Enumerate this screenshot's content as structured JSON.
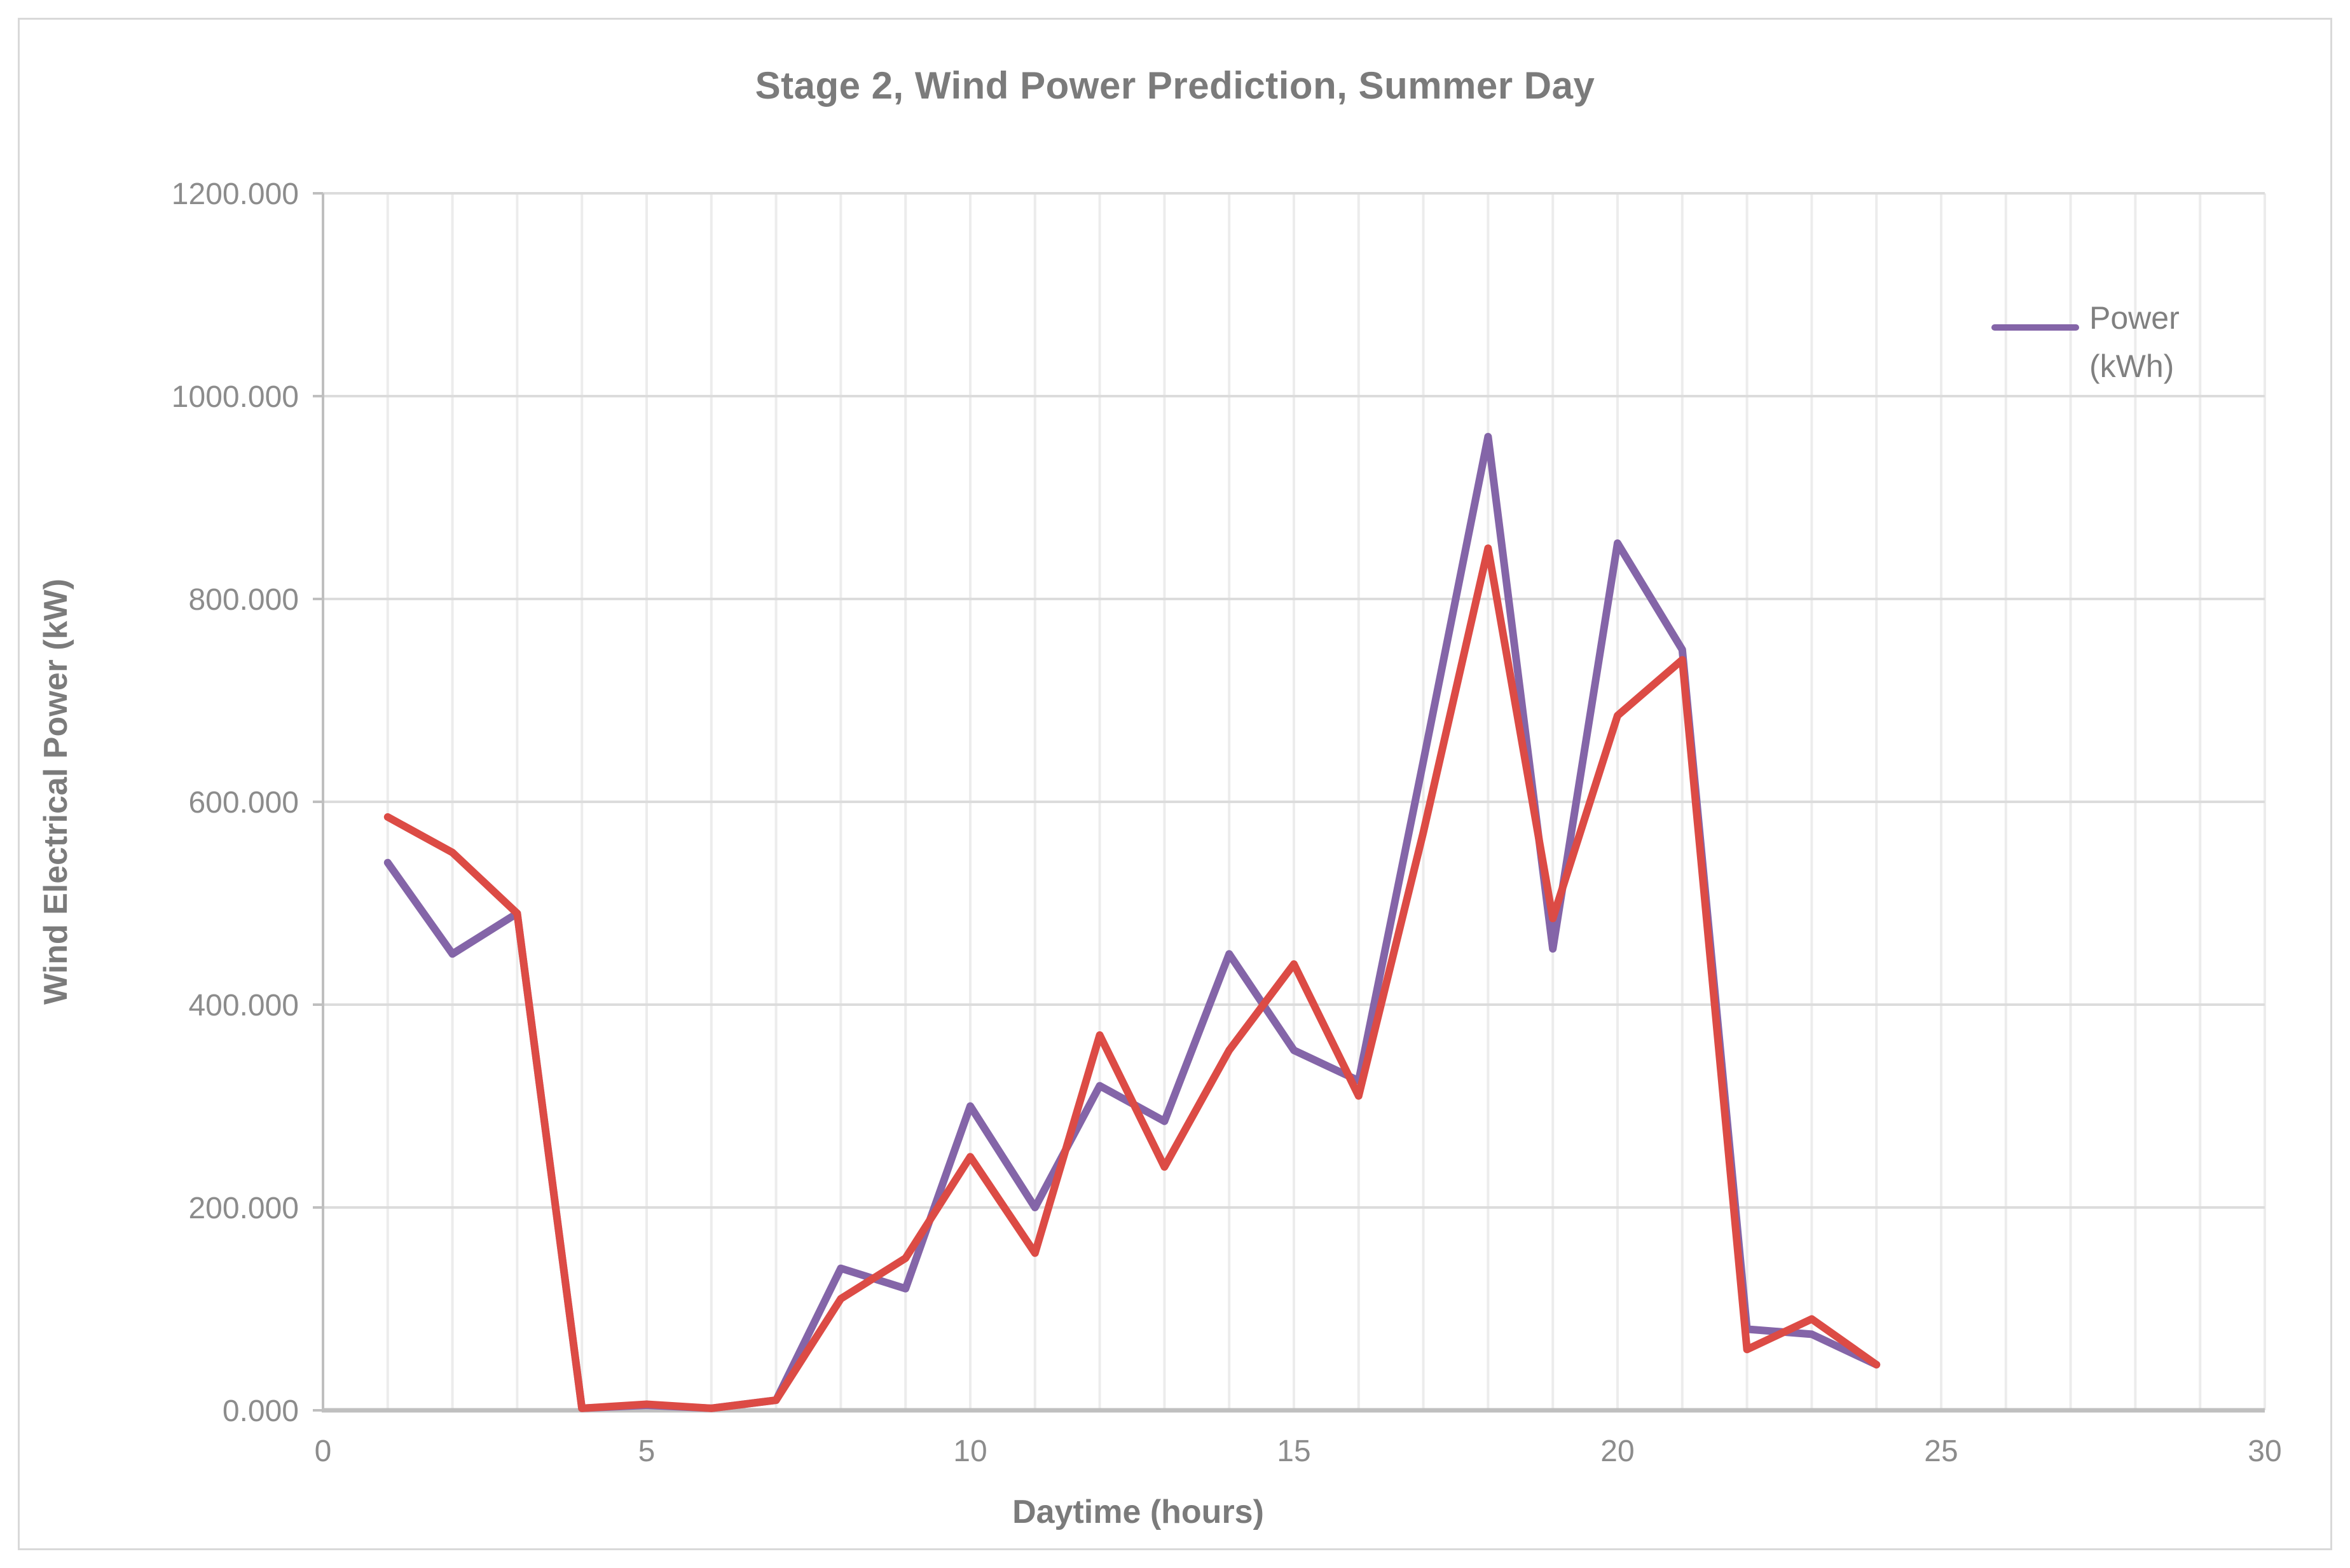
{
  "chart": {
    "title": "Stage 2, Wind Power Prediction, Summer Day",
    "y_axis_title": "Wind Electrical Power (kW)",
    "x_axis_title": "Daytime (hours)",
    "legend": {
      "label_line1": "Power",
      "label_line2": "(kWh)"
    },
    "colors": {
      "purple_series": "#8465a8",
      "red_series": "#dc4b45",
      "axis_line": "#bfbfbf",
      "gridline_horizontal": "#dcdcdc",
      "gridline_vertical": "#ececec",
      "tick_text": "#8c8c8c",
      "title_text": "#7b7b7b",
      "outer_border": "#d9d9d9"
    }
  },
  "chart_data": {
    "type": "line",
    "title": "Stage 2, Wind Power Prediction, Summer Day",
    "xlabel": "Daytime (hours)",
    "ylabel": "Wind Electrical Power (kW)",
    "xlim": [
      0,
      30
    ],
    "ylim": [
      0,
      1200
    ],
    "x_ticks": [
      0,
      5,
      10,
      15,
      20,
      25,
      30
    ],
    "y_tick_labels": [
      "0.000",
      "200.000",
      "400.000",
      "600.000",
      "800.000",
      "1000.000",
      "1200.000"
    ],
    "y_tick_values": [
      0,
      200,
      400,
      600,
      800,
      1000,
      1200
    ],
    "grid": true,
    "legend_position": "right-inside",
    "x": [
      1,
      2,
      3,
      4,
      5,
      6,
      7,
      8,
      9,
      10,
      11,
      12,
      13,
      14,
      15,
      16,
      17,
      18,
      19,
      20,
      21,
      22,
      23,
      24
    ],
    "series": [
      {
        "name": "Power (kWh)",
        "color": "#8465a8",
        "in_legend": true,
        "values": [
          540,
          450,
          490,
          2,
          5,
          2,
          10,
          140,
          120,
          300,
          200,
          320,
          285,
          450,
          355,
          325,
          640,
          960,
          455,
          855,
          750,
          80,
          75,
          45
        ]
      },
      {
        "name": "",
        "color": "#dc4b45",
        "in_legend": false,
        "values": [
          585,
          550,
          490,
          2,
          6,
          2,
          10,
          110,
          150,
          250,
          155,
          370,
          240,
          355,
          440,
          310,
          570,
          850,
          485,
          685,
          740,
          60,
          90,
          45
        ]
      }
    ]
  }
}
